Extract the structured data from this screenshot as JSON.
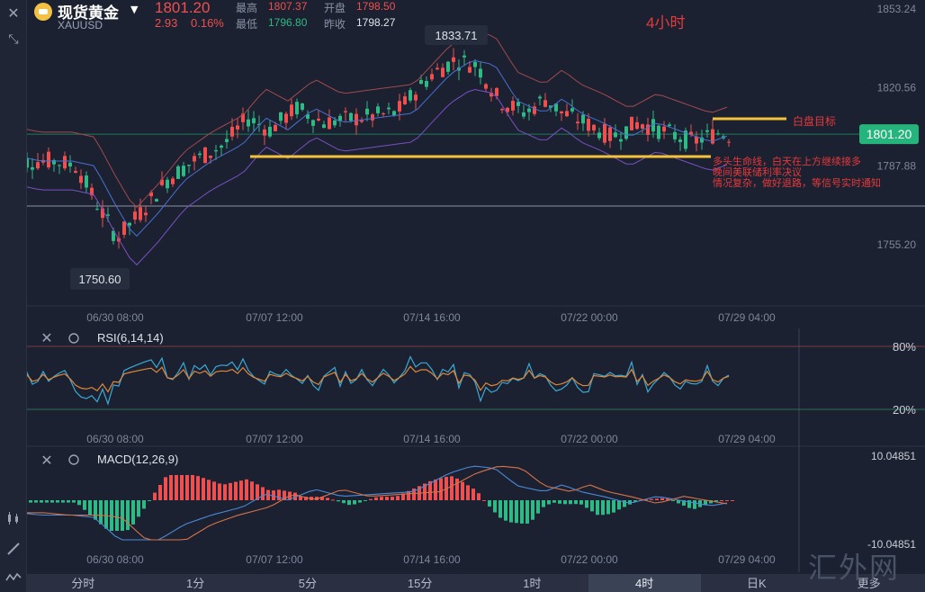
{
  "header": {
    "name": "现货黄金",
    "code": "XAUUSD",
    "price": "1801.20",
    "change": "2.93",
    "change_pct": "0.16%",
    "stats": {
      "high_label": "最高",
      "high": "1807.37",
      "open_label": "开盘",
      "open": "1798.50",
      "low_label": "最低",
      "low": "1796.80",
      "prev_close_label": "昨收",
      "prev_close": "1798.27"
    },
    "period_title": "4小时"
  },
  "main_chart": {
    "y_ticks": [
      "1853.24",
      "1820.56",
      "1787.88",
      "1755.20"
    ],
    "current_price_tag": "1801.20",
    "high_callout": "1833.71",
    "low_callout": "1750.60",
    "x_ticks": [
      "06/30 08:00",
      "07/07 12:00",
      "07/14 16:00",
      "07/22 00:00",
      "07/29 04:00"
    ],
    "annotation_target": "白盘目标",
    "annotation_note": [
      "多头生命线，白天在上方继续接多",
      "晚间美联储利率决议",
      "情况复杂，做好退路，等信号实时通知"
    ]
  },
  "rsi_panel": {
    "title": "RSI(6,14,14)",
    "levels": [
      "80%",
      "20%"
    ],
    "x_ticks": [
      "06/30 08:00",
      "07/07 12:00",
      "07/14 16:00",
      "07/22 00:00",
      "07/29 04:00"
    ]
  },
  "macd_panel": {
    "title": "MACD(12,26,9)",
    "y_ticks": [
      "10.04851",
      "-10.04851"
    ],
    "x_ticks": [
      "06/30 08:00",
      "07/07 12:00",
      "07/14 16:00",
      "07/22 00:00",
      "07/29 04:00"
    ]
  },
  "tabs": [
    "分时",
    "1分",
    "5分",
    "15分",
    "1时",
    "4时",
    "日K",
    "更多"
  ],
  "active_tab": "4时",
  "watermark": "汇外网",
  "colors": {
    "up": "#ef4f4f",
    "down": "#2fb984",
    "accent_tag": "#25b57c",
    "support_line": "#f5c23b",
    "annotation": "#e6393c"
  }
}
